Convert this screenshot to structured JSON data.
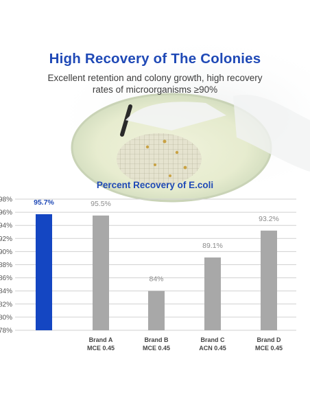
{
  "header": {
    "title": "High Recovery of The Colonies",
    "subtitle_line1": "Excellent retention and colony growth, high recovery",
    "subtitle_line2": "rates of microorganisms ≥90%"
  },
  "colors": {
    "title": "#1f49b6",
    "highlight_bar": "#1446c2",
    "other_bars": "#a8a8a8",
    "highlight_label": "#1f49b6",
    "other_label": "#8a8a8a",
    "grid": "#d0d0d0"
  },
  "chart_data": {
    "type": "bar",
    "title": "Percent Recovery of E.coli",
    "categories": [
      [
        "",
        ""
      ],
      [
        "Brand A",
        "MCE 0.45"
      ],
      [
        "Brand B",
        "MCE 0.45"
      ],
      [
        "Brand C",
        "ACN 0.45"
      ],
      [
        "Brand D",
        "MCE 0.45"
      ]
    ],
    "values": [
      95.7,
      95.5,
      84,
      89.1,
      93.2
    ],
    "value_labels": [
      "95.7%",
      "95.5%",
      "84%",
      "89.1%",
      "93.2%"
    ],
    "highlight_index": 0,
    "ylim": [
      78,
      98
    ],
    "yticks": [
      98,
      96,
      94,
      92,
      90,
      88,
      86,
      84,
      82,
      80,
      78
    ],
    "ytick_labels": [
      "98%",
      "96%",
      "94%",
      "92%",
      "90%",
      "88%",
      "86%",
      "84%",
      "82%",
      "80%",
      "78%"
    ],
    "grid": true
  }
}
